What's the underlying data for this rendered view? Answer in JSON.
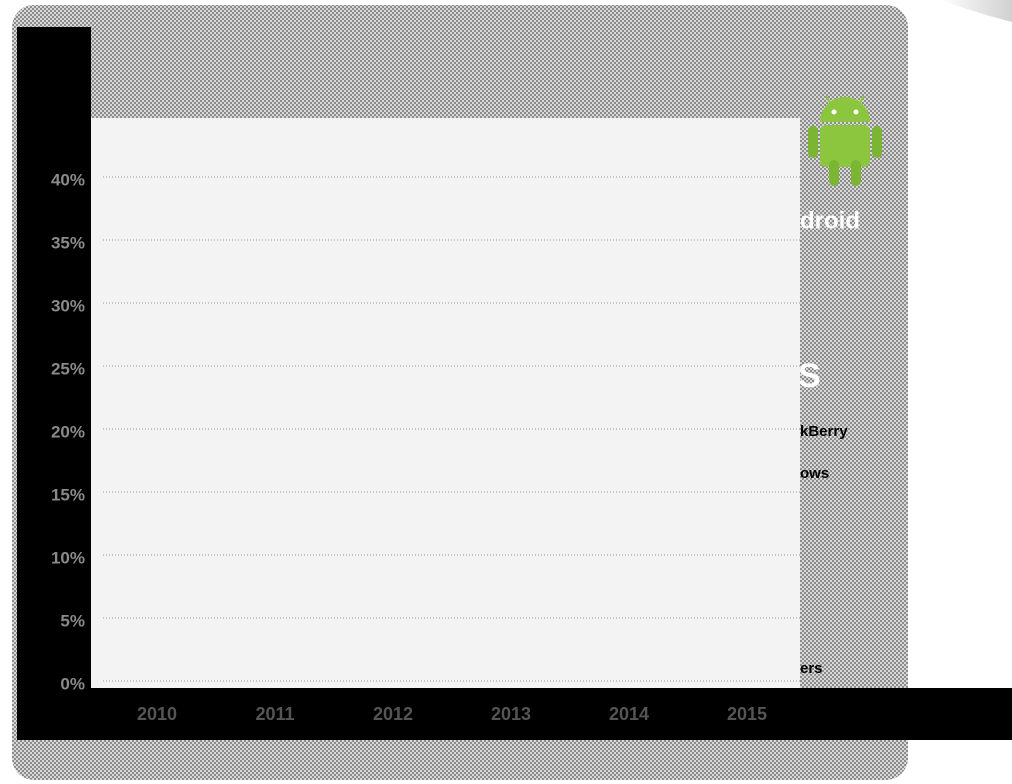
{
  "chart_data": {
    "type": "line",
    "categories": [
      "2010",
      "2011",
      "2012",
      "2013",
      "2014",
      "2015"
    ],
    "ylim": [
      0,
      45
    ],
    "yticks": [
      {
        "value": 0,
        "label": "0%"
      },
      {
        "value": 5,
        "label": "5%"
      },
      {
        "value": 10,
        "label": "10%"
      },
      {
        "value": 15,
        "label": "15%"
      },
      {
        "value": 20,
        "label": "20%"
      },
      {
        "value": 25,
        "label": "25%"
      },
      {
        "value": 30,
        "label": "30%"
      },
      {
        "value": 35,
        "label": "35%"
      },
      {
        "value": 40,
        "label": "40%"
      }
    ],
    "grid": true,
    "legend": [
      "droid",
      "S",
      "kBerry",
      "ows",
      "ers"
    ]
  }
}
